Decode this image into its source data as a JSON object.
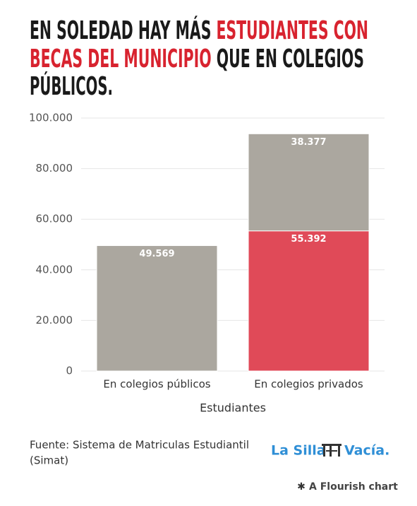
{
  "chart_data": {
    "type": "stacked-bar",
    "title_lines": [
      [
        {
          "text": "EN SOLEDAD HAY MÁS ",
          "color": "#1a1a1a"
        },
        {
          "text": "ESTUDIANTES CON",
          "color": "#d8232f"
        }
      ],
      [
        {
          "text": "BECAS DEL MUNICIPIO",
          "color": "#d8232f"
        },
        {
          "text": " QUE EN COLEGIOS",
          "color": "#1a1a1a"
        }
      ],
      [
        {
          "text": "PÚBLICOS.",
          "color": "#1a1a1a"
        }
      ]
    ],
    "categories": [
      "En colegios públicos",
      "En colegios privados"
    ],
    "series": [
      {
        "colors": [
          "#aba79f",
          "#e04a58"
        ],
        "values": [
          49569,
          55392
        ],
        "value_labels": [
          "49.569",
          "55.392"
        ]
      },
      {
        "color": "#aba79f",
        "values": [
          null,
          38377
        ],
        "value_labels": [
          null,
          "38.377"
        ]
      }
    ],
    "xlabel": "Estudiantes",
    "ylim": [
      0,
      100000
    ],
    "yticks": [
      0,
      {
        "value": 20000,
        "label": "20.000"
      },
      {
        "value": 40000,
        "label": "40.000"
      },
      {
        "value": 60000,
        "label": "60.000"
      },
      {
        "value": 80000,
        "label": "80.000"
      },
      {
        "value": 100000,
        "label": "100.000"
      }
    ],
    "grid": true,
    "source": [
      "Fuente: Sistema de Matriculas Estudiantil",
      "(Simat)"
    ],
    "logo": {
      "left": "La Silla",
      "right": "Vacía."
    },
    "credit": "A Flourish chart"
  }
}
